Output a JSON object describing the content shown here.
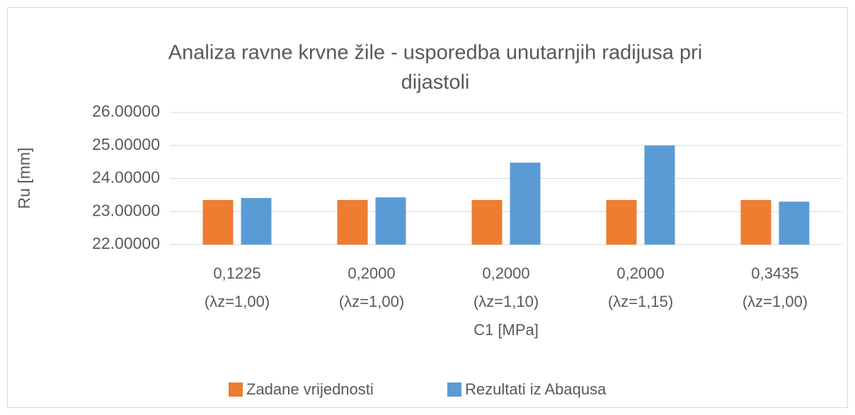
{
  "chart_data": {
    "type": "bar",
    "title": [
      "Analiza ravne krvne žile - usporedba unutarnjih radijusa pri",
      "dijastoli"
    ],
    "x_label": "C1 [MPa]",
    "y_label": "Ru [mm]",
    "categories": [
      [
        "0,1225",
        "(λz=1,00)"
      ],
      [
        "0,2000",
        "(λz=1,00)"
      ],
      [
        "0,2000",
        "(λz=1,10)"
      ],
      [
        "0,2000",
        "(λz=1,15)"
      ],
      [
        "0,3435",
        "(λz=1,00)"
      ]
    ],
    "series": [
      {
        "name": "Zadane vrijednosti",
        "color": "#ed7d31",
        "values": [
          23.35,
          23.35,
          23.35,
          23.35,
          23.35
        ]
      },
      {
        "name": "Rezultati iz Abaqusa",
        "color": "#5b9bd5",
        "values": [
          23.41,
          23.43,
          24.48,
          25.0,
          23.3
        ]
      }
    ],
    "ylim": [
      22,
      26
    ],
    "yticks": [
      {
        "value": 22,
        "label": "22.00000"
      },
      {
        "value": 23,
        "label": "23.00000"
      },
      {
        "value": 24,
        "label": "24.00000"
      },
      {
        "value": 25,
        "label": "25.00000"
      },
      {
        "value": 26,
        "label": "26.00000"
      }
    ],
    "grid": true,
    "legend": "bottom"
  }
}
